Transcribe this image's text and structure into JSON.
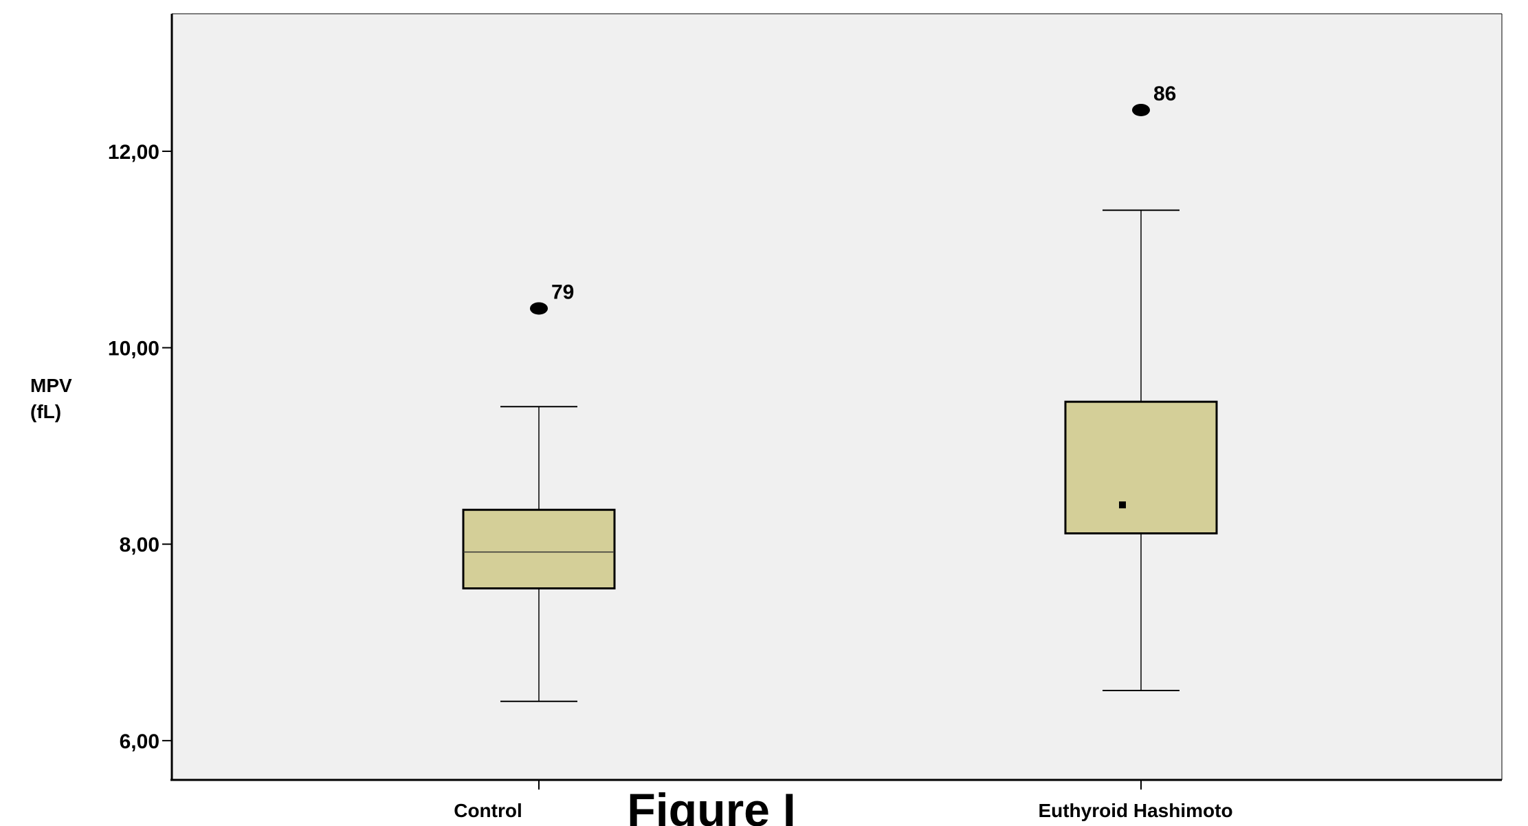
{
  "chart_data": {
    "type": "boxplot",
    "ylabel_lines": [
      "MPV",
      "(fL)"
    ],
    "ylim": [
      5.6,
      13.4
    ],
    "yticks": [
      6,
      8,
      10,
      12
    ],
    "ytick_labels": [
      "6,00",
      "8,00",
      "10,00",
      "12,00"
    ],
    "categories": [
      "Control",
      "Euthyroid Hashimoto"
    ],
    "box_color": "#d4cf98",
    "plot_background": "#f0f0f0",
    "boxes": [
      {
        "category": "Control",
        "whisker_low": 6.4,
        "q1": 7.55,
        "median": 7.92,
        "q3": 8.35,
        "whisker_high": 9.4,
        "outliers": [
          {
            "value": 10.4,
            "label": "79"
          }
        ]
      },
      {
        "category": "Euthyroid Hashimoto",
        "whisker_low": 6.51,
        "q1": 8.11,
        "median": 8.4,
        "q3": 9.45,
        "whisker_high": 11.4,
        "outliers": [
          {
            "value": 12.42,
            "label": "86"
          }
        ]
      }
    ]
  },
  "caption": "Figure I"
}
